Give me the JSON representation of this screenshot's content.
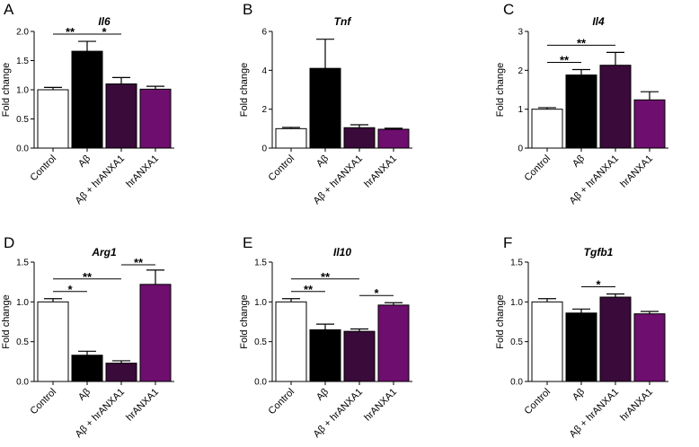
{
  "chart_data": [
    {
      "type": "bar",
      "panel": "A",
      "title": "Il6",
      "ylabel": "Fold change",
      "categories": [
        "Control",
        "Aβ",
        "Aβ + hrANXA1",
        "hrANXA1"
      ],
      "values": [
        1.0,
        1.66,
        1.1,
        1.01
      ],
      "errors": [
        0.04,
        0.17,
        0.11,
        0.05
      ],
      "ylim": [
        0,
        2.0
      ],
      "yticks": [
        "0.0",
        "0.5",
        "1.0",
        "1.5",
        "2.0"
      ],
      "significance": [
        {
          "from": 0,
          "to": 1,
          "label": "**"
        },
        {
          "from": 1,
          "to": 2,
          "label": "*"
        }
      ]
    },
    {
      "type": "bar",
      "panel": "B",
      "title": "Tnf",
      "ylabel": "Fold change",
      "categories": [
        "Control",
        "Aβ",
        "Aβ + hrANXA1",
        "hrANXA1"
      ],
      "values": [
        1.0,
        4.1,
        1.05,
        0.97
      ],
      "errors": [
        0.06,
        1.5,
        0.15,
        0.05
      ],
      "ylim": [
        0,
        6
      ],
      "yticks": [
        "0",
        "2",
        "4",
        "6"
      ],
      "significance": []
    },
    {
      "type": "bar",
      "panel": "C",
      "title": "Il4",
      "ylabel": "Fold change",
      "categories": [
        "Control",
        "Aβ",
        "Aβ + hrANXA1",
        "hrANXA1"
      ],
      "values": [
        1.0,
        1.88,
        2.13,
        1.24
      ],
      "errors": [
        0.04,
        0.14,
        0.33,
        0.21
      ],
      "ylim": [
        0,
        3
      ],
      "yticks": [
        "0",
        "1",
        "2",
        "3"
      ],
      "significance": [
        {
          "from": 0,
          "to": 1,
          "label": "**"
        },
        {
          "from": 0,
          "to": 2,
          "label": "**"
        }
      ]
    },
    {
      "type": "bar",
      "panel": "D",
      "title": "Arg1",
      "ylabel": "Fold change",
      "categories": [
        "Control",
        "Aβ",
        "Aβ + hrANXA1",
        "hrANXA1"
      ],
      "values": [
        1.0,
        0.33,
        0.23,
        1.22
      ],
      "errors": [
        0.04,
        0.05,
        0.03,
        0.18
      ],
      "ylim": [
        0,
        1.5
      ],
      "yticks": [
        "0.0",
        "0.5",
        "1.0",
        "1.5"
      ],
      "significance": [
        {
          "from": 0,
          "to": 1,
          "label": "*"
        },
        {
          "from": 0,
          "to": 2,
          "label": "**"
        },
        {
          "from": 2,
          "to": 3,
          "label": "**"
        }
      ]
    },
    {
      "type": "bar",
      "panel": "E",
      "title": "Il10",
      "ylabel": "Fold change",
      "categories": [
        "Control",
        "Aβ",
        "Aβ + hrANXA1",
        "hrANXA1"
      ],
      "values": [
        1.0,
        0.65,
        0.63,
        0.96
      ],
      "errors": [
        0.04,
        0.07,
        0.03,
        0.03
      ],
      "ylim": [
        0,
        1.5
      ],
      "yticks": [
        "0.0",
        "0.5",
        "1.0",
        "1.5"
      ],
      "significance": [
        {
          "from": 0,
          "to": 1,
          "label": "**"
        },
        {
          "from": 0,
          "to": 2,
          "label": "**"
        },
        {
          "from": 2,
          "to": 3,
          "label": "*"
        }
      ]
    },
    {
      "type": "bar",
      "panel": "F",
      "title": "Tgfb1",
      "ylabel": "Fold change",
      "categories": [
        "Control",
        "Aβ",
        "Aβ + hrANXA1",
        "hrANXA1"
      ],
      "values": [
        1.0,
        0.86,
        1.06,
        0.85
      ],
      "errors": [
        0.04,
        0.05,
        0.04,
        0.03
      ],
      "ylim": [
        0,
        1.5
      ],
      "yticks": [
        "0.0",
        "0.5",
        "1.0",
        "1.5"
      ],
      "significance": [
        {
          "from": 1,
          "to": 2,
          "label": "*"
        }
      ]
    }
  ],
  "colors": {
    "bars": [
      "#ffffff",
      "#000000",
      "#3a0a3a",
      "#6e0e6e"
    ],
    "stroke": "#000000"
  }
}
